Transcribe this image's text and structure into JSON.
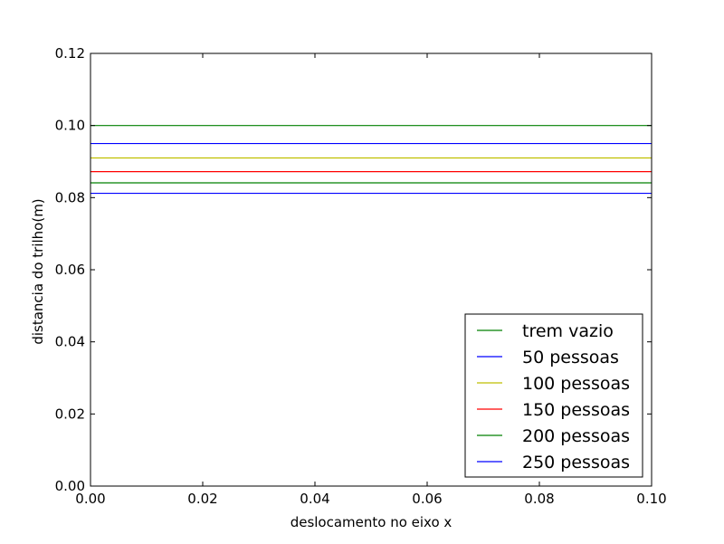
{
  "chart_data": {
    "type": "line",
    "xlabel": "deslocamento no eixo x",
    "ylabel": "distancia do trilho(m)",
    "xlim": [
      0.0,
      0.1
    ],
    "ylim": [
      0.0,
      0.12
    ],
    "xticks": [
      "0.00",
      "0.02",
      "0.04",
      "0.06",
      "0.08",
      "0.10"
    ],
    "yticks": [
      "0.00",
      "0.02",
      "0.04",
      "0.06",
      "0.08",
      "0.10",
      "0.12"
    ],
    "grid": false,
    "legend_position": "lower-right",
    "series": [
      {
        "name": "trem vazio",
        "color": "#008000",
        "x": [
          0.0,
          0.1
        ],
        "y": [
          0.1,
          0.1
        ]
      },
      {
        "name": "50 pessoas",
        "color": "#0000ff",
        "x": [
          0.0,
          0.1
        ],
        "y": [
          0.095,
          0.095
        ]
      },
      {
        "name": "100 pessoas",
        "color": "#bfbf00",
        "x": [
          0.0,
          0.1
        ],
        "y": [
          0.091,
          0.091
        ]
      },
      {
        "name": "150 pessoas",
        "color": "#ff0000",
        "x": [
          0.0,
          0.1
        ],
        "y": [
          0.0872,
          0.0872
        ]
      },
      {
        "name": "200 pessoas",
        "color": "#008000",
        "x": [
          0.0,
          0.1
        ],
        "y": [
          0.0841,
          0.0841
        ]
      },
      {
        "name": "250 pessoas",
        "color": "#0000ff",
        "x": [
          0.0,
          0.1
        ],
        "y": [
          0.0812,
          0.0812
        ]
      }
    ]
  }
}
